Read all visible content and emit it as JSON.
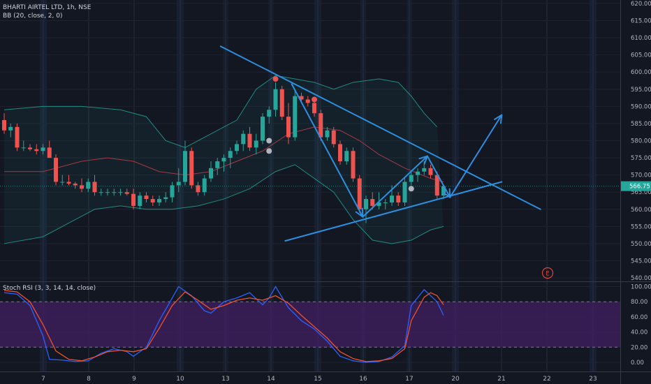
{
  "legend": {
    "main": "BHARTI AIRTEL LTD, 1h, NSE",
    "indicator": "BB (20, close, 2, 0)",
    "oscillator": "Stoch RSI (3, 3, 14, 14, close)"
  },
  "event_marker": "E",
  "colors": {
    "background": "#131722",
    "up": "#26a69a",
    "down": "#ef5350",
    "band": "#26a69a",
    "basis": "#b33d4a",
    "trend": "#2d8fe0",
    "rsi_k": "#2962ff",
    "rsi_d": "#f0512d",
    "osc_fill": "#3c1f5a",
    "last_price_bg": "#26a69a"
  },
  "chart_data": [
    {
      "type": "candlestick",
      "symbol": "BHARTI AIRTEL LTD",
      "interval": "1h",
      "exchange": "NSE",
      "x_ticks": [
        "7",
        "8",
        "9",
        "10",
        "13",
        "14",
        "15",
        "16",
        "17",
        "20",
        "21",
        "22",
        "23"
      ],
      "y_ticks": [
        540,
        545,
        550,
        555,
        560,
        565,
        570,
        575,
        580,
        585,
        590,
        595,
        600,
        605,
        610,
        615,
        620
      ],
      "y_tick_labels": [
        "540.00",
        "545.00",
        "550.00",
        "555.00",
        "560.00",
        "565.00",
        "570.00",
        "575.00",
        "580.00",
        "585.00",
        "590.00",
        "595.00",
        "600.00",
        "605.00",
        "610.00",
        "615.00",
        "620.00"
      ],
      "ylim": [
        539,
        621
      ],
      "grid": true,
      "last_price": 566.75,
      "last_price_label": "566.75",
      "candles": [
        [
          586,
          588,
          582,
          583
        ],
        [
          583,
          585,
          581,
          584
        ],
        [
          584,
          585,
          577,
          578
        ],
        [
          578,
          580,
          577,
          578
        ],
        [
          578,
          579,
          577,
          577.5
        ],
        [
          577.5,
          579,
          576,
          577
        ],
        [
          577,
          579,
          576,
          578
        ],
        [
          578,
          580,
          575,
          575
        ],
        [
          575,
          576,
          567,
          568
        ],
        [
          568,
          570,
          567,
          568
        ],
        [
          568,
          570,
          567,
          567.5
        ],
        [
          567.5,
          568,
          566,
          567
        ],
        [
          567,
          569,
          565,
          566
        ],
        [
          566,
          569,
          565,
          568
        ],
        [
          568,
          570,
          564,
          565
        ],
        [
          565,
          566,
          564,
          565
        ],
        [
          565,
          566,
          564,
          565
        ],
        [
          565,
          566,
          564,
          565
        ],
        [
          565,
          566,
          564,
          565
        ],
        [
          565,
          566,
          564,
          564.5
        ],
        [
          564.5,
          566,
          560,
          561
        ],
        [
          561,
          565,
          560,
          564
        ],
        [
          564,
          565,
          562,
          563
        ],
        [
          563,
          564,
          561,
          562
        ],
        [
          562,
          564,
          561,
          563
        ],
        [
          563,
          565,
          562,
          563.5
        ],
        [
          563.5,
          568,
          562,
          567
        ],
        [
          567,
          572,
          565,
          568
        ],
        [
          568,
          580,
          567,
          577
        ],
        [
          577,
          578,
          566,
          567
        ],
        [
          567,
          568,
          564,
          565
        ],
        [
          565,
          570,
          564,
          569
        ],
        [
          569,
          574,
          568,
          572
        ],
        [
          572,
          575,
          570,
          574
        ],
        [
          574,
          576,
          571,
          575
        ],
        [
          575,
          578,
          572,
          577
        ],
        [
          577,
          580,
          576,
          579
        ],
        [
          579,
          583,
          577,
          582
        ],
        [
          582,
          584,
          577,
          578
        ],
        [
          578,
          582,
          576,
          580
        ],
        [
          580,
          588,
          579,
          587
        ],
        [
          587,
          590,
          585,
          589
        ],
        [
          589,
          597,
          587,
          595
        ],
        [
          595,
          596,
          586,
          587
        ],
        [
          587,
          591,
          579,
          581
        ],
        [
          581,
          595,
          580,
          593
        ],
        [
          593,
          594,
          591,
          592
        ],
        [
          592,
          593,
          590,
          591
        ],
        [
          591,
          592,
          587,
          588
        ],
        [
          588,
          589,
          580,
          581
        ],
        [
          581,
          584,
          580,
          583
        ],
        [
          583,
          584,
          578,
          579
        ],
        [
          579,
          580,
          573,
          574
        ],
        [
          574,
          578,
          573,
          577
        ],
        [
          577,
          578,
          568,
          569
        ],
        [
          569,
          570,
          559,
          560
        ],
        [
          560,
          564,
          556,
          563
        ],
        [
          563,
          565,
          560,
          561
        ],
        [
          561,
          565,
          560,
          562
        ],
        [
          562,
          563,
          560,
          562
        ],
        [
          562,
          567,
          561,
          564
        ],
        [
          564,
          565,
          561,
          562
        ],
        [
          562,
          569,
          561,
          568
        ],
        [
          568,
          571,
          567,
          570
        ],
        [
          570,
          572,
          568,
          571
        ],
        [
          571,
          574,
          570,
          572
        ],
        [
          572,
          573,
          569,
          570
        ],
        [
          570,
          571,
          563,
          564
        ],
        [
          564,
          567,
          563,
          566.75
        ]
      ],
      "overlays": {
        "name": "BB (20, close, 2, 0)",
        "upper": [
          [
            0,
            589
          ],
          [
            6,
            590
          ],
          [
            12,
            590
          ],
          [
            18,
            589
          ],
          [
            22,
            587
          ],
          [
            25,
            580
          ],
          [
            28,
            578
          ],
          [
            32,
            582
          ],
          [
            36,
            586
          ],
          [
            39,
            595
          ],
          [
            42,
            599
          ],
          [
            45,
            598
          ],
          [
            48,
            597
          ],
          [
            51,
            595
          ],
          [
            54,
            597
          ],
          [
            58,
            598
          ],
          [
            61,
            597
          ],
          [
            63,
            593
          ],
          [
            65,
            588
          ],
          [
            67,
            584
          ]
        ],
        "lower": [
          [
            0,
            550
          ],
          [
            6,
            552
          ],
          [
            10,
            556
          ],
          [
            14,
            560
          ],
          [
            18,
            561
          ],
          [
            22,
            560
          ],
          [
            26,
            560
          ],
          [
            30,
            561
          ],
          [
            34,
            563
          ],
          [
            38,
            566
          ],
          [
            42,
            571
          ],
          [
            45,
            573
          ],
          [
            48,
            569
          ],
          [
            51,
            565
          ],
          [
            54,
            557
          ],
          [
            57,
            551
          ],
          [
            60,
            550
          ],
          [
            63,
            551
          ],
          [
            66,
            554
          ],
          [
            68,
            555
          ]
        ],
        "basis": [
          [
            0,
            571
          ],
          [
            6,
            571
          ],
          [
            12,
            574
          ],
          [
            16,
            575
          ],
          [
            20,
            574
          ],
          [
            24,
            571
          ],
          [
            28,
            570
          ],
          [
            32,
            571
          ],
          [
            36,
            574
          ],
          [
            40,
            577
          ],
          [
            44,
            582
          ],
          [
            48,
            584
          ],
          [
            52,
            583
          ],
          [
            55,
            580
          ],
          [
            58,
            576
          ],
          [
            62,
            572
          ],
          [
            66,
            569
          ],
          [
            68,
            568
          ]
        ]
      },
      "markers": {
        "red_dots": [
          [
            42,
            598
          ],
          [
            48,
            592
          ]
        ],
        "gray_dots": [
          [
            41,
            580
          ],
          [
            41,
            577
          ],
          [
            63,
            566
          ]
        ]
      }
    },
    {
      "type": "line",
      "name": "Stoch RSI (3, 3, 14, 14, close)",
      "y_ticks": [
        0,
        20,
        40,
        60,
        80,
        100
      ],
      "y_tick_labels": [
        "0.00",
        "20.00",
        "40.00",
        "60.00",
        "80.00",
        "100.00"
      ],
      "ylim": [
        -12,
        106
      ],
      "bands": [
        20,
        80
      ],
      "series": [
        {
          "key": "k",
          "values": [
            [
              0,
              92
            ],
            [
              2,
              90
            ],
            [
              4,
              75
            ],
            [
              6,
              35
            ],
            [
              7,
              4
            ],
            [
              9,
              3
            ],
            [
              11,
              1
            ],
            [
              13,
              2
            ],
            [
              15,
              12
            ],
            [
              17,
              18
            ],
            [
              19,
              14
            ],
            [
              20,
              8
            ],
            [
              22,
              20
            ],
            [
              24,
              55
            ],
            [
              26,
              85
            ],
            [
              27,
              100
            ],
            [
              29,
              88
            ],
            [
              31,
              68
            ],
            [
              32,
              65
            ],
            [
              34,
              80
            ],
            [
              36,
              85
            ],
            [
              38,
              92
            ],
            [
              40,
              76
            ],
            [
              41,
              85
            ],
            [
              42,
              100
            ],
            [
              44,
              72
            ],
            [
              46,
              55
            ],
            [
              48,
              44
            ],
            [
              50,
              28
            ],
            [
              52,
              8
            ],
            [
              54,
              2
            ],
            [
              56,
              0
            ],
            [
              58,
              1
            ],
            [
              60,
              7
            ],
            [
              62,
              22
            ],
            [
              63,
              75
            ],
            [
              65,
              96
            ],
            [
              67,
              80
            ],
            [
              68,
              62
            ]
          ]
        },
        {
          "key": "d",
          "values": [
            [
              0,
              95
            ],
            [
              2,
              93
            ],
            [
              4,
              80
            ],
            [
              6,
              50
            ],
            [
              8,
              15
            ],
            [
              10,
              4
            ],
            [
              12,
              2
            ],
            [
              14,
              7
            ],
            [
              16,
              14
            ],
            [
              18,
              16
            ],
            [
              20,
              14
            ],
            [
              22,
              18
            ],
            [
              24,
              45
            ],
            [
              26,
              75
            ],
            [
              28,
              93
            ],
            [
              30,
              82
            ],
            [
              32,
              70
            ],
            [
              34,
              75
            ],
            [
              36,
              82
            ],
            [
              38,
              85
            ],
            [
              40,
              82
            ],
            [
              42,
              88
            ],
            [
              44,
              78
            ],
            [
              46,
              62
            ],
            [
              48,
              47
            ],
            [
              50,
              32
            ],
            [
              52,
              14
            ],
            [
              54,
              5
            ],
            [
              56,
              1
            ],
            [
              58,
              2
            ],
            [
              60,
              5
            ],
            [
              62,
              18
            ],
            [
              63,
              55
            ],
            [
              65,
              86
            ],
            [
              66,
              92
            ],
            [
              67,
              88
            ],
            [
              68,
              76
            ]
          ]
        }
      ]
    }
  ]
}
